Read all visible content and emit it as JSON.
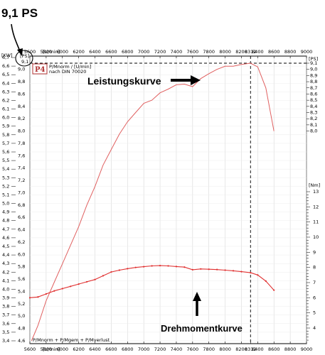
{
  "callout": {
    "peak_label": "9,1 PS",
    "peak_box": "9,1"
  },
  "chart_data": {
    "type": "line",
    "title": "",
    "xlabel": "[U/min]",
    "x_unit_top": "[U/min]",
    "x_unit_bottom": "[U/min]",
    "left_unit": "[KW]",
    "right_unit_ps": "[PS]",
    "right_unit_nm": "[Nm]",
    "left_ps_unit": "[PS]",
    "xlim": [
      5600,
      9000
    ],
    "x_ticks": [
      5600,
      5800,
      6000,
      6200,
      6400,
      6600,
      6800,
      7000,
      7200,
      7400,
      7600,
      7800,
      8000,
      8200,
      8312,
      8400,
      8600,
      8800,
      9000
    ],
    "x_tick_labels": [
      "5600",
      "5800",
      "6000",
      "6200",
      "6400",
      "6600",
      "6800",
      "7000",
      "7200",
      "7400",
      "7600",
      "7800",
      "8000",
      "8200",
      "8312",
      "8400",
      "8600",
      "8800",
      "9000"
    ],
    "peak_rpm": 8312,
    "left_kw_ylim": [
      3.4,
      6.7
    ],
    "left_kw_ticks": [
      "3,4",
      "3,5",
      "3,6",
      "3,7",
      "3,8",
      "3,9",
      "4,0",
      "4,1",
      "4,2",
      "4,3",
      "4,4",
      "4,5",
      "4,6",
      "4,7",
      "4,8",
      "4,9",
      "5,0",
      "5,1",
      "5,2",
      "5,3",
      "5,4",
      "5,5",
      "5,6",
      "5,7",
      "5,8",
      "5,9",
      "6,0",
      "6,1",
      "6,2",
      "6,3",
      "6,4",
      "6,5",
      "6,6",
      "6,7"
    ],
    "left_ps_ticks": [
      "4,6",
      "4,8",
      "5,0",
      "5,2",
      "5,4",
      "5,6",
      "5,8",
      "6,0",
      "6,2",
      "6,4",
      "6,6",
      "6,8",
      "7,0",
      "7,2",
      "7,4",
      "7,6",
      "7,8",
      "8,0",
      "8,2",
      "8,4",
      "8,6",
      "8,8",
      "9,0"
    ],
    "right_ps_ylim": [
      4.6,
      9.1
    ],
    "right_ps_ticks": [
      "8,0",
      "8,1",
      "8,2",
      "8,3",
      "8,4",
      "8,5",
      "8,6",
      "8,7",
      "8,8",
      "8,9",
      "9,0",
      "9,1"
    ],
    "right_nm_ticks": [
      "4",
      "5",
      "6",
      "7",
      "8",
      "9",
      "10",
      "11",
      "12",
      "13"
    ],
    "annotations": [
      "Leistungskurve",
      "Drehmomentkurve"
    ],
    "logo": "P4",
    "legend_header": "P/Mnorm / [U/min]",
    "legend_note": "nach DIN 70020",
    "legend_bottom": "P/Mnorm + P/Mgem + P/Mverlust",
    "series": [
      {
        "name": "Leistungskurve",
        "axis": "PS",
        "color": "#e06060",
        "x": [
          5620,
          5700,
          5800,
          5900,
          6000,
          6100,
          6200,
          6300,
          6400,
          6500,
          6600,
          6700,
          6800,
          6900,
          7000,
          7100,
          7200,
          7300,
          7400,
          7500,
          7600,
          7700,
          7800,
          7900,
          8000,
          8100,
          8200,
          8312,
          8400,
          8500,
          8600
        ],
        "y": [
          4.6,
          4.85,
          5.25,
          5.55,
          5.85,
          6.15,
          6.45,
          6.8,
          7.1,
          7.45,
          7.7,
          7.95,
          8.15,
          8.3,
          8.45,
          8.5,
          8.62,
          8.68,
          8.75,
          8.76,
          8.72,
          8.85,
          8.93,
          9.0,
          9.05,
          9.05,
          9.08,
          9.1,
          9.04,
          8.7,
          8.0
        ]
      },
      {
        "name": "Drehmomentkurve",
        "axis": "Nm",
        "color": "#e03030",
        "x": [
          5600,
          5700,
          5800,
          5900,
          6000,
          6100,
          6200,
          6300,
          6400,
          6500,
          6600,
          6700,
          6800,
          6900,
          7000,
          7100,
          7200,
          7300,
          7400,
          7500,
          7600,
          7700,
          7800,
          7900,
          8000,
          8100,
          8200,
          8312,
          8400,
          8500,
          8600
        ],
        "y": [
          6.0,
          6.05,
          6.25,
          6.45,
          6.6,
          6.75,
          6.9,
          7.05,
          7.2,
          7.45,
          7.7,
          7.82,
          7.92,
          8.0,
          8.05,
          8.1,
          8.12,
          8.1,
          8.06,
          8.02,
          7.85,
          7.9,
          7.88,
          7.86,
          7.82,
          7.78,
          7.72,
          7.65,
          7.5,
          7.1,
          6.5
        ]
      }
    ],
    "grid": true
  }
}
